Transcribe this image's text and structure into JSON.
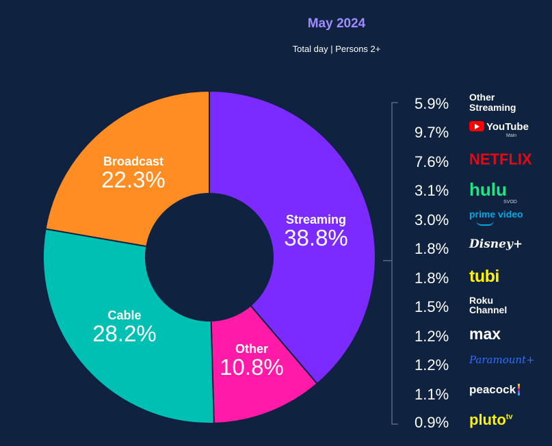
{
  "header": {
    "title": "May 2024",
    "subtitle": "Total day | Persons 2+"
  },
  "colors": {
    "background": "#0f2240",
    "streaming": "#7b2bff",
    "other": "#ff1aa8",
    "cable": "#00bfb3",
    "broadcast": "#ff8d24",
    "title": "#a08bff"
  },
  "chart_data": {
    "type": "pie",
    "title": "May 2024",
    "subtitle": "Total day | Persons 2+",
    "donut": true,
    "slices": [
      {
        "name": "Streaming",
        "label": "38.8%",
        "value": 38.8,
        "color": "#7b2bff"
      },
      {
        "name": "Other",
        "label": "10.8%",
        "value": 10.8,
        "color": "#ff1aa8"
      },
      {
        "name": "Cable",
        "label": "28.2%",
        "value": 28.2,
        "color": "#00bfb3"
      },
      {
        "name": "Broadcast",
        "label": "22.3%",
        "value": 22.3,
        "color": "#ff8d24"
      }
    ],
    "streaming_breakdown": [
      {
        "name": "Other Streaming",
        "label": "5.9%",
        "value": 5.9
      },
      {
        "name": "YouTube",
        "sub": "Main",
        "label": "9.7%",
        "value": 9.7
      },
      {
        "name": "NETFLIX",
        "label": "7.6%",
        "value": 7.6
      },
      {
        "name": "hulu",
        "sub": "SVOD",
        "label": "3.1%",
        "value": 3.1
      },
      {
        "name": "prime video",
        "label": "3.0%",
        "value": 3.0
      },
      {
        "name": "Disney+",
        "label": "1.8%",
        "value": 1.8
      },
      {
        "name": "tubi",
        "label": "1.8%",
        "value": 1.8
      },
      {
        "name": "Roku Channel",
        "label": "1.5%",
        "value": 1.5
      },
      {
        "name": "max",
        "label": "1.2%",
        "value": 1.2
      },
      {
        "name": "Paramount+",
        "label": "1.2%",
        "value": 1.2
      },
      {
        "name": "peacock",
        "label": "1.1%",
        "value": 1.1
      },
      {
        "name": "pluto tv",
        "label": "0.9%",
        "value": 0.9
      }
    ]
  },
  "logos": {
    "other_streaming_line1": "Other",
    "other_streaming_line2": "Streaming",
    "youtube": "YouTube",
    "youtube_sub": "Main",
    "netflix": "NETFLIX",
    "hulu": "hulu",
    "hulu_sub": "SVOD",
    "prime": "prime video",
    "disney": "Disney+",
    "tubi": "tubi",
    "roku_line1": "Roku",
    "roku_line2": "Channel",
    "max": "max",
    "paramount": "Paramount+",
    "peacock": "peacock",
    "pluto": "pluto",
    "pluto_tv": "tv"
  }
}
